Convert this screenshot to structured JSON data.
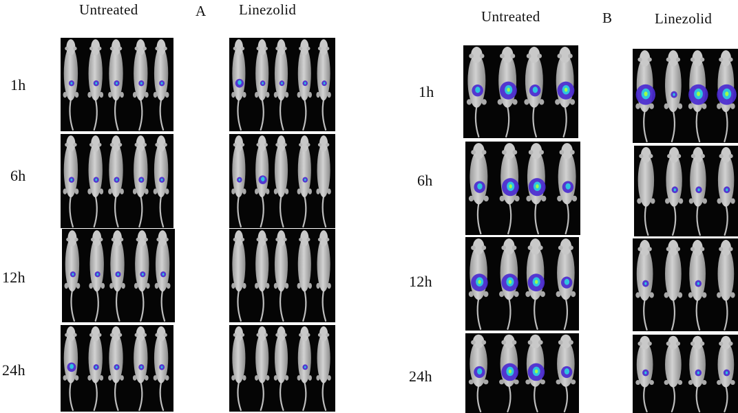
{
  "figure": {
    "panel_a": {
      "letter": "A",
      "left_header": "Untreated",
      "right_header": "Linezolid",
      "timepoints": [
        "1h",
        "6h",
        "12h",
        "24h"
      ]
    },
    "panel_b": {
      "letter": "B",
      "left_header": "Untreated",
      "right_header": "Linezolid",
      "timepoints": [
        "1h",
        "6h",
        "12h",
        "24h"
      ]
    }
  },
  "colors": {
    "tile_background": "#050505",
    "mouse_body": "#d2d2d2",
    "signal_low": "#4a2ad0",
    "signal_mid": "#2ec4e0",
    "signal_high": "#9cff4a"
  }
}
